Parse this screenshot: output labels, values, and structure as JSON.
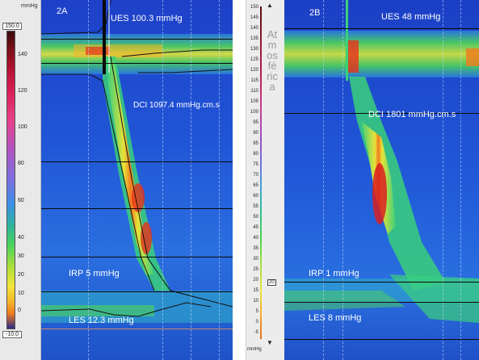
{
  "panelA": {
    "label": "2A",
    "unit": "mmHg",
    "scale_max": "150.0",
    "scale_min": "-10.0",
    "ticks": [
      "140",
      "120",
      "100",
      "80",
      "60",
      "40",
      "30",
      "20",
      "10",
      "0"
    ],
    "ues": "UES 100.3 mmHg",
    "dci": "DCI 1097.4 mmHg.cm.s",
    "irp": "IRP 5 mmHg",
    "les": "LES 12.3 mmHg"
  },
  "panelB": {
    "label": "2B",
    "unit": "mmHg",
    "ticks": [
      "150",
      "145",
      "140",
      "135",
      "130",
      "125",
      "120",
      "115",
      "110",
      "105",
      "100",
      "95",
      "90",
      "85",
      "80",
      "75",
      "70",
      "65",
      "60",
      "55",
      "50",
      "45",
      "40",
      "35",
      "30",
      "25",
      "20",
      "15",
      "10",
      "5",
      "0",
      "-5"
    ],
    "vertical_text": "Atmosférica",
    "marker": "20",
    "ues": "UES 48 mmHg",
    "dci": "DCI 1801 mmHg.cm.s",
    "irp": "IRP 1 mmHg",
    "les": "LES 8 mmHg"
  },
  "colors": {
    "low": "#1e40c8",
    "mid": "#4cd35a",
    "high": "#f4e53a",
    "peak": "#d81f20"
  }
}
